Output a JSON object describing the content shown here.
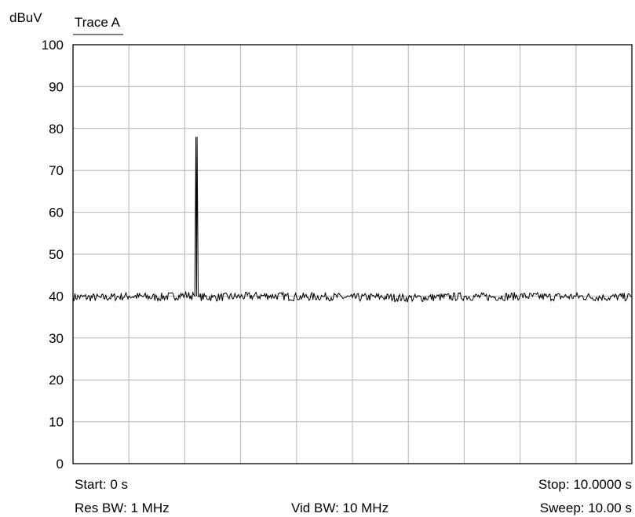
{
  "chart_data": {
    "type": "line",
    "title": "Trace A",
    "ylabel": "dBuV",
    "xlabel": "",
    "xlim": [
      0,
      10
    ],
    "ylim": [
      0,
      100
    ],
    "yticks": [
      "0",
      "10",
      "20",
      "30",
      "40",
      "50",
      "60",
      "70",
      "80",
      "90",
      "100"
    ],
    "x_divisions": 10,
    "grid": true,
    "noise_floor": 39.5,
    "noise_ripple": 1.0,
    "series": [
      {
        "name": "Trace A",
        "color": "#000000",
        "x": [
          0.0,
          0.5,
          1.0,
          1.5,
          2.0,
          2.18,
          2.2,
          2.21,
          2.22,
          2.24,
          2.26,
          2.5,
          3.0,
          3.5,
          4.0,
          4.5,
          5.0,
          5.5,
          6.0,
          6.5,
          7.0,
          7.5,
          8.0,
          8.5,
          9.0,
          9.5,
          10.0
        ],
        "y": [
          39.8,
          39.6,
          40.0,
          39.7,
          40.2,
          40.0,
          78.0,
          40.0,
          78.0,
          40.0,
          39.8,
          39.7,
          39.9,
          40.1,
          39.8,
          39.9,
          39.6,
          39.8,
          39.5,
          39.7,
          39.9,
          39.8,
          40.0,
          39.8,
          39.9,
          39.7,
          39.8
        ]
      }
    ],
    "footer": {
      "start": "Start: 0 s",
      "stop": "Stop: 10.0000 s",
      "res_bw": "Res BW: 1 MHz",
      "vid_bw": "Vid BW: 10 MHz",
      "sweep": "Sweep: 10.00 s"
    }
  }
}
